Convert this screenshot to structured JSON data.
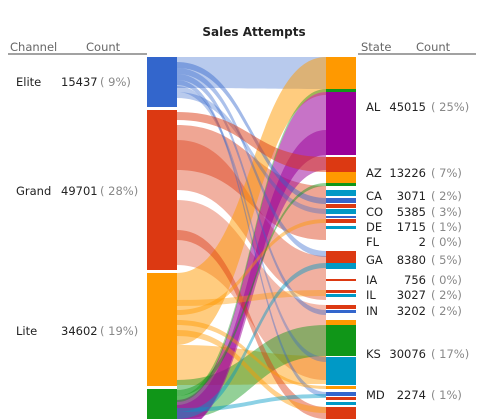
{
  "chart_data": {
    "type": "parallel-sets",
    "title": "Sales Attempts",
    "left_axis": {
      "dimension_label": "Channel",
      "count_label": "Count",
      "categories": [
        {
          "name": "Elite",
          "count": "15437",
          "percent": "( 9%)",
          "color": "#3366cc"
        },
        {
          "name": "Grand",
          "count": "49701",
          "percent": "( 28%)",
          "color": "#dc3912"
        },
        {
          "name": "Lite",
          "count": "34602",
          "percent": "( 19%)",
          "color": "#ff9900"
        },
        {
          "name": "",
          "count": "",
          "percent": "",
          "color": "#109618"
        }
      ]
    },
    "right_axis": {
      "dimension_label": "State",
      "count_label": "Count",
      "categories": [
        {
          "name": "AL",
          "count": "45015",
          "percent": "( 25%)"
        },
        {
          "name": "AZ",
          "count": "13226",
          "percent": "( 7%)"
        },
        {
          "name": "CA",
          "count": "3071",
          "percent": "( 2%)"
        },
        {
          "name": "CO",
          "count": "5385",
          "percent": "( 3%)"
        },
        {
          "name": "DE",
          "count": "1715",
          "percent": "( 1%)"
        },
        {
          "name": "FL",
          "count": "2",
          "percent": "( 0%)"
        },
        {
          "name": "GA",
          "count": "8380",
          "percent": "( 5%)"
        },
        {
          "name": "IA",
          "count": "756",
          "percent": "( 0%)"
        },
        {
          "name": "IL",
          "count": "3027",
          "percent": "( 2%)"
        },
        {
          "name": "IN",
          "count": "3202",
          "percent": "( 2%)"
        },
        {
          "name": "KS",
          "count": "30076",
          "percent": "( 17%)"
        },
        {
          "name": "MD",
          "count": "2274",
          "percent": "( 1%)"
        },
        {
          "name": "",
          "count": "",
          "percent": ""
        }
      ]
    }
  }
}
